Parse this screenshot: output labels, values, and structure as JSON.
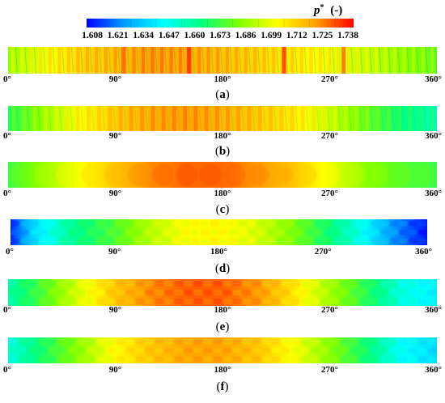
{
  "chart_data": {
    "type": "heatmap",
    "colorbar": {
      "label": "p*",
      "unit": "(-)",
      "ticks": [
        "1.608",
        "1.621",
        "1.634",
        "1.647",
        "1.660",
        "1.673",
        "1.686",
        "1.699",
        "1.712",
        "1.725",
        "1.738"
      ],
      "range": [
        1.608,
        1.738
      ],
      "colormap": [
        "#0000ff",
        "#00a0ff",
        "#00ffff",
        "#00ff80",
        "#80ff00",
        "#ffff00",
        "#ffa000",
        "#ff0000"
      ]
    },
    "x_ticks": [
      "0°",
      "90°",
      "180°",
      "270°",
      "360°"
    ],
    "x_range": [
      0,
      360
    ],
    "panels": [
      {
        "id": "a",
        "caption": "a",
        "pattern": "strong-stripes",
        "profile": [
          [
            0,
            1.685
          ],
          [
            30,
            1.698
          ],
          [
            60,
            1.708
          ],
          [
            90,
            1.712
          ],
          [
            120,
            1.718
          ],
          [
            150,
            1.716
          ],
          [
            180,
            1.712
          ],
          [
            210,
            1.708
          ],
          [
            240,
            1.704
          ],
          [
            270,
            1.698
          ],
          [
            300,
            1.692
          ],
          [
            330,
            1.684
          ],
          [
            360,
            1.678
          ]
        ]
      },
      {
        "id": "b",
        "caption": "b",
        "pattern": "stripes",
        "profile": [
          [
            0,
            1.668
          ],
          [
            30,
            1.685
          ],
          [
            60,
            1.7
          ],
          [
            90,
            1.71
          ],
          [
            120,
            1.716
          ],
          [
            150,
            1.718
          ],
          [
            180,
            1.715
          ],
          [
            210,
            1.71
          ],
          [
            240,
            1.704
          ],
          [
            270,
            1.692
          ],
          [
            300,
            1.678
          ],
          [
            330,
            1.664
          ],
          [
            360,
            1.656
          ]
        ]
      },
      {
        "id": "c",
        "caption": "c",
        "pattern": "smooth",
        "profile": [
          [
            0,
            1.672
          ],
          [
            30,
            1.686
          ],
          [
            60,
            1.7
          ],
          [
            90,
            1.712
          ],
          [
            120,
            1.722
          ],
          [
            150,
            1.726
          ],
          [
            180,
            1.726
          ],
          [
            210,
            1.72
          ],
          [
            240,
            1.712
          ],
          [
            270,
            1.698
          ],
          [
            300,
            1.684
          ],
          [
            330,
            1.676
          ],
          [
            360,
            1.672
          ]
        ]
      },
      {
        "id": "d",
        "caption": "d",
        "pattern": "grid",
        "profile": [
          [
            0,
            1.612
          ],
          [
            20,
            1.638
          ],
          [
            50,
            1.66
          ],
          [
            90,
            1.675
          ],
          [
            120,
            1.69
          ],
          [
            150,
            1.7
          ],
          [
            180,
            1.702
          ],
          [
            210,
            1.696
          ],
          [
            240,
            1.684
          ],
          [
            270,
            1.668
          ],
          [
            300,
            1.65
          ],
          [
            330,
            1.626
          ],
          [
            360,
            1.61
          ]
        ]
      },
      {
        "id": "e",
        "caption": "e",
        "pattern": "grid",
        "profile": [
          [
            0,
            1.658
          ],
          [
            30,
            1.676
          ],
          [
            60,
            1.696
          ],
          [
            90,
            1.712
          ],
          [
            120,
            1.722
          ],
          [
            150,
            1.727
          ],
          [
            180,
            1.727
          ],
          [
            210,
            1.72
          ],
          [
            240,
            1.706
          ],
          [
            270,
            1.688
          ],
          [
            300,
            1.67
          ],
          [
            330,
            1.65
          ],
          [
            360,
            1.642
          ]
        ]
      },
      {
        "id": "f",
        "caption": "f",
        "pattern": "grid",
        "profile": [
          [
            0,
            1.65
          ],
          [
            30,
            1.668
          ],
          [
            60,
            1.685
          ],
          [
            90,
            1.702
          ],
          [
            120,
            1.712
          ],
          [
            150,
            1.718
          ],
          [
            180,
            1.718
          ],
          [
            210,
            1.712
          ],
          [
            240,
            1.7
          ],
          [
            270,
            1.684
          ],
          [
            300,
            1.666
          ],
          [
            330,
            1.646
          ],
          [
            360,
            1.638
          ]
        ]
      }
    ]
  }
}
